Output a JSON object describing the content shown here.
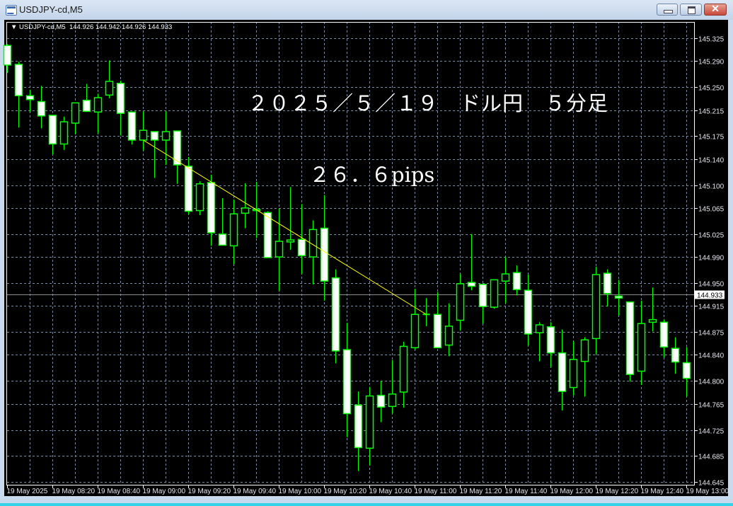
{
  "window": {
    "title": "USDJPY-cd,M5",
    "icon": "chart-window-icon",
    "buttons": {
      "minimize": "minimize-icon",
      "maximize": "maximize-icon",
      "close": "✕"
    }
  },
  "chart_header": {
    "menu_glyph": "▼",
    "symbol": "USDJPY-cd,M5",
    "ohlc": "144.926 144.942 144.926 144.933"
  },
  "annotations": {
    "title": "２０２５／５／１９　ドル円　５分足",
    "pips": "２６．６pips"
  },
  "colors": {
    "background": "#000000",
    "candle_outline": "#00ff00",
    "bear_fill": "#ffffff",
    "bull_fill": "#000000",
    "grid": "#7b8a9e",
    "trendline": "#ffff00",
    "bid_line": "#8c8c8c"
  },
  "chart_data": {
    "type": "candlestick",
    "timeframe": "M5",
    "start_time": "19 May 08:00",
    "x": [
      "08:00",
      "08:05",
      "08:10",
      "08:15",
      "08:20",
      "08:25",
      "08:30",
      "08:35",
      "08:40",
      "08:45",
      "08:50",
      "08:55",
      "09:00",
      "09:05",
      "09:10",
      "09:15",
      "09:20",
      "09:25",
      "09:30",
      "09:35",
      "09:40",
      "09:45",
      "09:50",
      "09:55",
      "10:00",
      "10:05",
      "10:10",
      "10:15",
      "10:20",
      "10:25",
      "10:30",
      "10:35",
      "10:40",
      "10:45",
      "10:50",
      "10:55",
      "11:00",
      "11:05",
      "11:10",
      "11:15",
      "11:20",
      "11:25",
      "11:30",
      "11:35",
      "11:40",
      "11:45",
      "11:50",
      "11:55",
      "12:00",
      "12:05",
      "12:10",
      "12:15",
      "12:20",
      "12:25",
      "12:30",
      "12:35",
      "12:40",
      "12:45",
      "12:50",
      "12:55",
      "13:00"
    ],
    "ohlc": [
      [
        145.314,
        145.316,
        145.272,
        145.284
      ],
      [
        145.285,
        145.289,
        145.188,
        145.237
      ],
      [
        145.237,
        145.246,
        145.212,
        145.231
      ],
      [
        145.228,
        145.252,
        145.187,
        145.206
      ],
      [
        145.207,
        145.207,
        145.147,
        145.163
      ],
      [
        145.163,
        145.205,
        145.154,
        145.197
      ],
      [
        145.195,
        145.226,
        145.178,
        145.226
      ],
      [
        145.23,
        145.255,
        145.212,
        145.213
      ],
      [
        145.212,
        145.24,
        145.179,
        145.234
      ],
      [
        145.238,
        145.291,
        145.233,
        145.259
      ],
      [
        145.256,
        145.26,
        145.176,
        145.21
      ],
      [
        145.212,
        145.212,
        145.162,
        145.169
      ],
      [
        145.169,
        145.213,
        145.153,
        145.184
      ],
      [
        145.182,
        145.182,
        145.111,
        145.169
      ],
      [
        145.169,
        145.213,
        145.131,
        145.182
      ],
      [
        145.183,
        145.183,
        145.102,
        145.131
      ],
      [
        145.129,
        145.143,
        145.055,
        145.06
      ],
      [
        145.061,
        145.106,
        145.054,
        145.102
      ],
      [
        145.104,
        145.116,
        145.007,
        145.027
      ],
      [
        145.025,
        145.08,
        145.008,
        145.008
      ],
      [
        145.007,
        145.078,
        144.979,
        145.056
      ],
      [
        145.057,
        145.103,
        145.034,
        145.065
      ],
      [
        145.061,
        145.105,
        145.019,
        145.063
      ],
      [
        145.058,
        145.06,
        144.989,
        144.989
      ],
      [
        144.99,
        145.064,
        144.938,
        145.014
      ],
      [
        145.013,
        145.097,
        145.001,
        145.016
      ],
      [
        145.017,
        145.071,
        144.964,
        144.992
      ],
      [
        144.99,
        145.046,
        144.948,
        145.032
      ],
      [
        145.034,
        145.085,
        144.923,
        144.953
      ],
      [
        144.958,
        144.971,
        144.827,
        144.846
      ],
      [
        144.848,
        144.889,
        144.714,
        144.75
      ],
      [
        144.763,
        144.784,
        144.662,
        144.698
      ],
      [
        144.697,
        144.791,
        144.671,
        144.777
      ],
      [
        144.778,
        144.8,
        144.737,
        144.76
      ],
      [
        144.761,
        144.832,
        144.75,
        144.78
      ],
      [
        144.783,
        144.86,
        144.759,
        144.853
      ],
      [
        144.851,
        144.941,
        144.848,
        144.902
      ],
      [
        144.902,
        144.927,
        144.884,
        144.902
      ],
      [
        144.902,
        144.936,
        144.851,
        144.851
      ],
      [
        144.855,
        144.919,
        144.838,
        144.884
      ],
      [
        144.893,
        144.964,
        144.877,
        144.949
      ],
      [
        144.951,
        145.025,
        144.939,
        144.945
      ],
      [
        144.948,
        144.948,
        144.888,
        144.914
      ],
      [
        144.913,
        144.955,
        144.911,
        144.955
      ],
      [
        144.953,
        144.99,
        144.919,
        144.964
      ],
      [
        144.966,
        144.977,
        144.931,
        144.94
      ],
      [
        144.939,
        144.963,
        144.854,
        144.872
      ],
      [
        144.874,
        144.89,
        144.83,
        144.886
      ],
      [
        144.883,
        144.89,
        144.821,
        144.843
      ],
      [
        144.843,
        144.879,
        144.755,
        144.784
      ],
      [
        144.79,
        144.861,
        144.778,
        144.833
      ],
      [
        144.83,
        144.867,
        144.776,
        144.863
      ],
      [
        144.865,
        144.975,
        144.841,
        144.963
      ],
      [
        144.965,
        144.971,
        144.914,
        144.934
      ],
      [
        144.93,
        144.955,
        144.9,
        144.927
      ],
      [
        144.921,
        144.921,
        144.799,
        144.81
      ],
      [
        144.815,
        144.923,
        144.794,
        144.888
      ],
      [
        144.89,
        144.943,
        144.876,
        144.894
      ],
      [
        144.89,
        144.894,
        144.836,
        144.852
      ],
      [
        144.85,
        144.867,
        144.811,
        144.829
      ],
      [
        144.828,
        144.852,
        144.776,
        144.804
      ]
    ],
    "ylim": [
      144.641,
      145.35
    ],
    "y_ticks": [
      "145.325",
      "145.290",
      "145.250",
      "145.215",
      "145.175",
      "145.140",
      "145.100",
      "145.065",
      "145.025",
      "144.990",
      "144.950",
      "144.915",
      "144.875",
      "144.840",
      "144.800",
      "144.765",
      "144.725",
      "144.685",
      "144.645"
    ],
    "x_ticks": [
      "19 May 2025",
      "19 May 08:20",
      "19 May 08:40",
      "19 May 09:00",
      "19 May 09:20",
      "19 May 09:40",
      "19 May 10:00",
      "19 May 10:20",
      "19 May 10:40",
      "19 May 11:00",
      "19 May 11:20",
      "19 May 11:40",
      "19 May 12:00",
      "19 May 12:20",
      "19 May 12:40",
      "19 May 13:00"
    ],
    "bid": "144.933",
    "trendline": {
      "from": {
        "time": "09:00",
        "price": 145.169
      },
      "to": {
        "time": "11:05",
        "price": 144.902
      }
    },
    "grid": true
  }
}
